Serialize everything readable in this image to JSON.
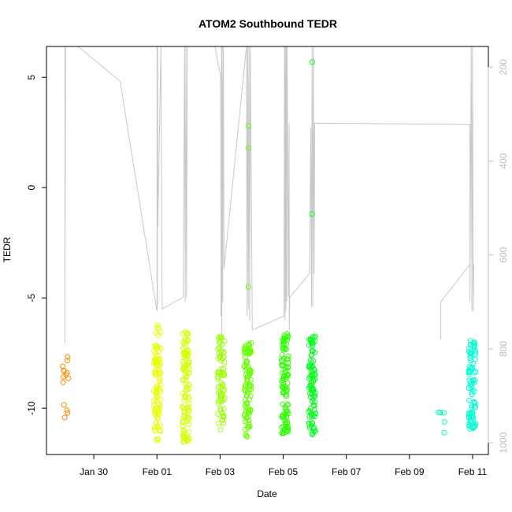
{
  "chart_data": {
    "type": "scatter",
    "title": "ATOM2 Southbound TEDR",
    "xlabel": "Date",
    "ylabel": "TEDR",
    "x_is_date": true,
    "xlim": [
      "2017-01-28T12:00",
      "2017-02-11T12:00"
    ],
    "ylim": [
      -12.1,
      6.4
    ],
    "y2lim": [
      1025,
      156
    ],
    "y2_reversed": true,
    "x_ticks": [
      {
        "date": "2017-01-30T00:00",
        "label": "Jan 30"
      },
      {
        "date": "2017-02-01T00:00",
        "label": "Feb 01"
      },
      {
        "date": "2017-02-03T00:00",
        "label": "Feb 03"
      },
      {
        "date": "2017-02-05T00:00",
        "label": "Feb 05"
      },
      {
        "date": "2017-02-07T00:00",
        "label": "Feb 07"
      },
      {
        "date": "2017-02-09T00:00",
        "label": "Feb 09"
      },
      {
        "date": "2017-02-11T00:00",
        "label": "Feb 11"
      }
    ],
    "y_ticks": [
      {
        "value": 5,
        "label": "5"
      },
      {
        "value": 0,
        "label": "0"
      },
      {
        "value": -5,
        "label": "-5"
      },
      {
        "value": -10,
        "label": "-10"
      }
    ],
    "y2_ticks": [
      {
        "value": 200,
        "label": "200"
      },
      {
        "value": 400,
        "label": "400"
      },
      {
        "value": 600,
        "label": "600"
      },
      {
        "value": 800,
        "label": "800"
      },
      {
        "value": 1000,
        "label": "1000"
      }
    ],
    "grid": false,
    "track_color": "#c8c8c8",
    "secondary_axis_color": "#bdbdbd",
    "color_scale": "rainbow-by-time",
    "clusters": [
      {
        "date": "2017-01-29T02:00",
        "color": "#ff8c00",
        "yMin": -10.8,
        "yMax": -7.4,
        "count": 14
      },
      {
        "date": "2017-02-01T00:15",
        "color": "#e6ff00",
        "yMin": -11.5,
        "yMax": -6.2,
        "count": 90
      },
      {
        "date": "2017-02-01T22:00",
        "color": "#d4ff00",
        "yMin": -11.6,
        "yMax": -6.5,
        "count": 100
      },
      {
        "date": "2017-02-03T01:00",
        "color": "#9cff00",
        "yMin": -11.0,
        "yMax": -6.6,
        "count": 70
      },
      {
        "date": "2017-02-03T21:00",
        "color": "#66ff00",
        "yMin": -11.3,
        "yMax": -7.0,
        "count": 95
      },
      {
        "date": "2017-02-05T01:30",
        "color": "#2cff00",
        "yMin": -11.2,
        "yMax": -6.6,
        "count": 100
      },
      {
        "date": "2017-02-05T22:00",
        "color": "#00ff1a",
        "yMin": -11.2,
        "yMax": -6.6,
        "count": 90
      },
      {
        "date": "2017-02-10T00:30",
        "color": "#00ffae",
        "yMin": -11.3,
        "yMax": -10.1,
        "count": 5
      },
      {
        "date": "2017-02-10T23:45",
        "color": "#00ffd2",
        "yMin": -11.0,
        "yMax": -6.8,
        "count": 85
      }
    ],
    "extra_points": [
      {
        "date": "2017-02-03T21:30",
        "y": 2.8,
        "color": "#66ff00"
      },
      {
        "date": "2017-02-03T21:30",
        "y": 1.8,
        "color": "#66ff00"
      },
      {
        "date": "2017-02-03T21:30",
        "y": -4.5,
        "color": "#66ff00"
      },
      {
        "date": "2017-02-05T22:00",
        "y": 5.7,
        "color": "#00ff1a"
      },
      {
        "date": "2017-02-05T22:00",
        "y": -1.2,
        "color": "#00ff1a"
      }
    ],
    "track": [
      [
        "2017-01-29T02:00",
        156
      ],
      [
        "2017-01-29T02:00",
        790
      ],
      [
        "2017-01-29T02:30",
        156
      ],
      [
        "2017-01-29T12:00",
        150
      ],
      [
        "2017-01-30T20:00",
        230
      ],
      [
        "2017-02-01T00:00",
        720
      ],
      [
        "2017-02-01T00:00",
        156
      ],
      [
        "2017-02-01T00:10",
        715
      ],
      [
        "2017-02-01T00:15",
        156
      ],
      [
        "2017-02-01T00:20",
        710
      ],
      [
        "2017-02-01T00:30",
        156
      ],
      [
        "2017-02-01T00:40",
        540
      ],
      [
        "2017-02-01T03:00",
        156
      ],
      [
        "2017-02-01T04:00",
        715
      ],
      [
        "2017-02-01T20:00",
        690
      ],
      [
        "2017-02-01T21:00",
        156
      ],
      [
        "2017-02-01T21:30",
        700
      ],
      [
        "2017-02-01T22:00",
        156
      ],
      [
        "2017-02-01T22:30",
        690
      ],
      [
        "2017-02-01T23:00",
        156
      ],
      [
        "2017-02-02T20:00",
        156
      ],
      [
        "2017-02-03T00:30",
        220
      ],
      [
        "2017-02-03T00:45",
        730
      ],
      [
        "2017-02-03T01:00",
        156
      ],
      [
        "2017-02-03T01:20",
        780
      ],
      [
        "2017-02-03T01:40",
        156
      ],
      [
        "2017-02-03T02:00",
        700
      ],
      [
        "2017-02-03T02:30",
        156
      ],
      [
        "2017-02-03T03:00",
        630
      ],
      [
        "2017-02-03T20:00",
        150
      ],
      [
        "2017-02-03T20:30",
        730
      ],
      [
        "2017-02-03T21:00",
        156
      ],
      [
        "2017-02-03T21:30",
        715
      ],
      [
        "2017-02-03T22:00",
        156
      ],
      [
        "2017-02-03T22:30",
        740
      ],
      [
        "2017-02-03T23:00",
        156
      ],
      [
        "2017-02-04T00:30",
        760
      ],
      [
        "2017-02-05T00:30",
        730
      ],
      [
        "2017-02-05T01:00",
        156
      ],
      [
        "2017-02-05T01:20",
        740
      ],
      [
        "2017-02-05T01:40",
        156
      ],
      [
        "2017-02-05T02:00",
        720
      ],
      [
        "2017-02-05T02:20",
        156
      ],
      [
        "2017-02-05T02:40",
        700
      ],
      [
        "2017-02-05T03:00",
        156
      ],
      [
        "2017-02-05T04:00",
        690
      ],
      [
        "2017-02-05T04:30",
        319
      ],
      [
        "2017-02-05T04:40",
        760
      ],
      [
        "2017-02-05T05:00",
        690
      ],
      [
        "2017-02-05T20:00",
        640
      ],
      [
        "2017-02-05T21:00",
        330
      ],
      [
        "2017-02-05T21:30",
        710
      ],
      [
        "2017-02-05T22:00",
        156
      ],
      [
        "2017-02-05T22:30",
        710
      ],
      [
        "2017-02-05T23:00",
        156
      ],
      [
        "2017-02-05T23:30",
        640
      ],
      [
        "2017-02-06T00:00",
        319
      ],
      [
        "2017-02-10T22:00",
        322
      ],
      [
        "2017-02-10T22:00",
        700
      ],
      [
        "2017-02-10T23:00",
        156
      ],
      [
        "2017-02-10T23:30",
        720
      ],
      [
        "2017-02-11T00:00",
        156
      ],
      [
        "2017-02-11T00:30",
        720
      ],
      [
        "2017-02-11T01:00",
        620
      ]
    ],
    "track2": [
      [
        "2017-02-09T23:50",
        780
      ],
      [
        "2017-02-09T23:50",
        700
      ],
      [
        "2017-02-10T22:00",
        620
      ]
    ]
  }
}
